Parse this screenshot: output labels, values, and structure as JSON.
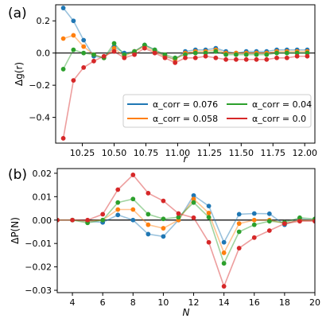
{
  "chart_data": [
    {
      "panel_label": "(a)",
      "type": "line",
      "xlabel": "r",
      "ylabel": "Δg(r)",
      "xlim": [
        10.04,
        12.08
      ],
      "ylim": [
        -0.56,
        0.3
      ],
      "xticks": [
        10.25,
        10.5,
        10.75,
        11.0,
        11.25,
        11.5,
        11.75,
        12.0
      ],
      "xtick_labels": [
        "10.25",
        "10.50",
        "10.75",
        "11.00",
        "11.25",
        "11.50",
        "11.75",
        "12.00"
      ],
      "yticks": [
        -0.4,
        -0.2,
        0.0,
        0.2
      ],
      "ytick_labels": [
        "−0.4",
        "−0.2",
        "0.0",
        "0.2"
      ],
      "hline": 0,
      "legend_position": "lower right",
      "x": [
        10.1,
        10.18,
        10.26,
        10.34,
        10.42,
        10.5,
        10.58,
        10.66,
        10.74,
        10.82,
        10.9,
        10.98,
        11.06,
        11.14,
        11.22,
        11.3,
        11.38,
        11.46,
        11.54,
        11.62,
        11.7,
        11.78,
        11.86,
        11.94,
        12.02
      ],
      "series": [
        {
          "name": "α_corr = 0.076",
          "color": "#1f77b4",
          "values": [
            0.28,
            0.2,
            0.08,
            -0.02,
            -0.03,
            0.04,
            0.0,
            0.01,
            0.05,
            0.02,
            -0.02,
            -0.04,
            0.01,
            0.02,
            0.02,
            0.03,
            0.01,
            0.0,
            0.01,
            0.01,
            0.01,
            0.02,
            0.02,
            0.02,
            0.02
          ]
        },
        {
          "name": "α_corr = 0.058",
          "color": "#ff7f0e",
          "values": [
            0.09,
            0.11,
            0.04,
            -0.01,
            -0.03,
            0.03,
            -0.02,
            0.01,
            0.04,
            0.01,
            -0.02,
            -0.04,
            0.0,
            0.01,
            0.01,
            0.02,
            0.0,
            0.0,
            0.0,
            0.0,
            0.0,
            0.01,
            0.01,
            0.01,
            0.01
          ]
        },
        {
          "name": "α_corr = 0.04",
          "color": "#2ca02c",
          "values": [
            -0.1,
            0.02,
            0.0,
            -0.01,
            -0.03,
            0.06,
            -0.01,
            0.01,
            0.05,
            0.02,
            -0.01,
            -0.03,
            -0.01,
            0.0,
            0.0,
            0.01,
            -0.01,
            -0.01,
            -0.01,
            -0.01,
            -0.01,
            0.0,
            0.0,
            0.0,
            0.0
          ]
        },
        {
          "name": "α_corr = 0.0",
          "color": "#d62728",
          "values": [
            -0.53,
            -0.17,
            -0.09,
            -0.05,
            -0.02,
            0.01,
            -0.03,
            -0.01,
            0.03,
            0.0,
            -0.03,
            -0.06,
            -0.03,
            -0.03,
            -0.02,
            -0.03,
            -0.04,
            -0.04,
            -0.04,
            -0.04,
            -0.04,
            -0.03,
            -0.03,
            -0.02,
            -0.02
          ]
        }
      ]
    },
    {
      "panel_label": "(b)",
      "type": "line",
      "xlabel": "N",
      "ylabel": "ΔP(N)",
      "xlim": [
        3,
        20
      ],
      "ylim": [
        -0.031,
        0.022
      ],
      "xticks": [
        4,
        6,
        8,
        10,
        12,
        14,
        16,
        18,
        20
      ],
      "xtick_labels": [
        "4",
        "6",
        "8",
        "10",
        "12",
        "14",
        "16",
        "18",
        "20"
      ],
      "yticks": [
        -0.03,
        -0.02,
        -0.01,
        0.0,
        0.01,
        0.02
      ],
      "ytick_labels": [
        "−0.03",
        "−0.02",
        "−0.01",
        "0.00",
        "0.01",
        "0.02"
      ],
      "hline": 0,
      "x": [
        3,
        4,
        5,
        6,
        7,
        8,
        9,
        10,
        11,
        12,
        13,
        14,
        15,
        16,
        17,
        18,
        19,
        20
      ],
      "series": [
        {
          "name": "α_corr = 0.076",
          "color": "#1f77b4",
          "values": [
            0.0,
            0.0,
            -0.0005,
            -0.001,
            0.0022,
            0.0,
            -0.006,
            -0.007,
            0.0,
            0.0105,
            0.006,
            -0.0095,
            0.0025,
            0.0028,
            0.0027,
            -0.002,
            0.0005,
            0.0
          ]
        },
        {
          "name": "α_corr = 0.058",
          "color": "#ff7f0e",
          "values": [
            0.0,
            0.0,
            -0.0005,
            0.0,
            0.0045,
            0.0045,
            -0.002,
            -0.0035,
            0.0,
            0.009,
            0.003,
            -0.014,
            -0.0015,
            0.0,
            0.0,
            -0.0015,
            0.0,
            0.0
          ]
        },
        {
          "name": "α_corr = 0.04",
          "color": "#2ca02c",
          "values": [
            0.0,
            0.0,
            -0.0012,
            0.0,
            0.0075,
            0.009,
            0.0025,
            0.0005,
            0.0012,
            0.0075,
            0.0012,
            -0.0185,
            -0.005,
            -0.002,
            -0.0005,
            -0.001,
            0.001,
            0.0005
          ]
        },
        {
          "name": "α_corr = 0.0",
          "color": "#d62728",
          "values": [
            0.0,
            0.0,
            0.0,
            0.0025,
            0.013,
            0.0193,
            0.0115,
            0.0082,
            0.0028,
            0.001,
            -0.0095,
            -0.0283,
            -0.012,
            -0.0075,
            -0.0045,
            -0.0015,
            -0.0005,
            -0.0005
          ]
        }
      ]
    }
  ]
}
